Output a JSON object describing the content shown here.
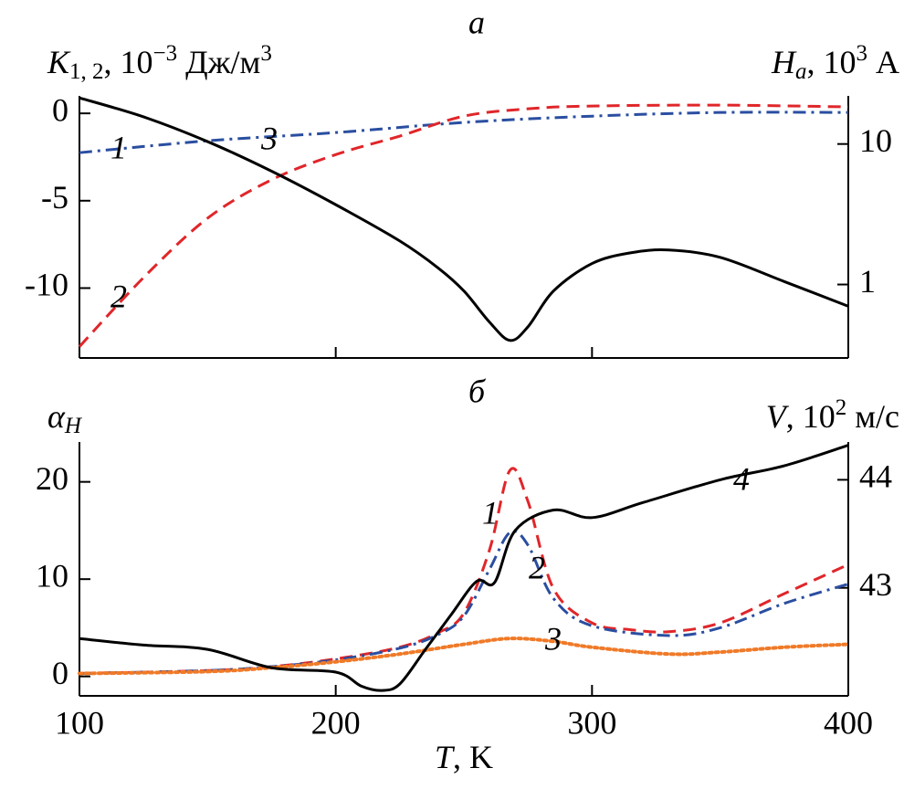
{
  "chart_data": [
    {
      "type": "line",
      "title": "а",
      "y_label": {
        "main": "K",
        "sub": "1, 2",
        "mid": ", 10",
        "sup": "−3",
        "unit": " Дж/м",
        "sup2": "3"
      },
      "y2_label": {
        "main": "H",
        "sub": "a",
        "mid": ", 10",
        "sup": "3",
        "unit": " А"
      },
      "xlim": [
        100,
        400
      ],
      "xticks": [
        200,
        300
      ],
      "ylim": [
        -14,
        1
      ],
      "yticks": [
        0,
        -5,
        -10
      ],
      "y2lim": [
        0.3,
        22
      ],
      "y2ticks": [
        1,
        10
      ],
      "y2log": true,
      "series": [
        {
          "name": "1",
          "color": "#2a4ea0",
          "dash": "dashdot",
          "x": [
            100,
            150,
            200,
            250,
            300,
            350,
            400
          ],
          "values": [
            -2.25,
            -1.57,
            -1.1,
            -0.52,
            -0.16,
            0.05,
            0.05
          ]
        },
        {
          "name": "2",
          "color": "#e0262a",
          "dash": "dashed",
          "x": [
            100,
            125,
            150,
            175,
            200,
            225,
            250,
            275,
            300,
            350,
            400
          ],
          "values": [
            -13.35,
            -9.4,
            -6.0,
            -3.8,
            -2.36,
            -1.3,
            -0.16,
            0.26,
            0.42,
            0.47,
            0.37
          ]
        },
        {
          "name": "3",
          "color": "#000000",
          "dash": "solid",
          "axis": "y2",
          "x": [
            100,
            125,
            150,
            175,
            200,
            225,
            240,
            250,
            260,
            268,
            275,
            285,
            300,
            315,
            330,
            350,
            375,
            400
          ],
          "values": [
            21.3,
            15.6,
            10.4,
            6.4,
            3.7,
            2.04,
            1.31,
            0.9,
            0.54,
            0.4,
            0.5,
            0.9,
            1.41,
            1.68,
            1.76,
            1.56,
            1.05,
            0.7
          ]
        }
      ]
    },
    {
      "type": "line",
      "title": "б",
      "y_label": {
        "main": "α",
        "sub": "H"
      },
      "y2_label": {
        "main": "V",
        "mid": ", 10",
        "sup": "2",
        "unit": " м/с"
      },
      "x_label": {
        "main": "T",
        "unit": ", K"
      },
      "xlim": [
        100,
        400
      ],
      "xticks": [
        100,
        200,
        300,
        400
      ],
      "ylim": [
        -2,
        24.1
      ],
      "yticks": [
        0,
        10,
        20
      ],
      "y2lim": [
        42,
        44.35
      ],
      "y2ticks": [
        43,
        44
      ],
      "series": [
        {
          "name": "1",
          "color": "#e0262a",
          "dash": "dashed",
          "x": [
            100,
            150,
            175,
            200,
            225,
            240,
            250,
            260,
            268,
            275,
            285,
            300,
            315,
            330,
            350,
            375,
            400
          ],
          "values": [
            0.3,
            0.6,
            1.0,
            1.8,
            3.0,
            4.5,
            6.5,
            13,
            21.2,
            18,
            9,
            5.5,
            4.8,
            4.6,
            5.5,
            8.5,
            11.5
          ]
        },
        {
          "name": "2",
          "color": "#2a4ea0",
          "dash": "dashdot",
          "x": [
            100,
            150,
            175,
            200,
            225,
            240,
            250,
            260,
            268,
            275,
            285,
            300,
            330,
            350,
            375,
            400
          ],
          "values": [
            0.3,
            0.6,
            1.0,
            1.7,
            2.9,
            4.3,
            6.2,
            11,
            14.8,
            13.5,
            8,
            5.2,
            4.2,
            5,
            7.5,
            9.5
          ]
        },
        {
          "name": "3",
          "color": "#f07a28",
          "dash": "dotted",
          "x": [
            100,
            150,
            175,
            200,
            225,
            250,
            268,
            285,
            300,
            330,
            350,
            375,
            400
          ],
          "values": [
            0.3,
            0.5,
            0.9,
            1.5,
            2.3,
            3.3,
            3.9,
            3.6,
            3.0,
            2.3,
            2.5,
            3.0,
            3.3
          ]
        },
        {
          "name": "4",
          "color": "#000000",
          "dash": "solid",
          "axis": "y2",
          "x": [
            100,
            125,
            150,
            175,
            200,
            210,
            218,
            225,
            235,
            245,
            255,
            262,
            270,
            285,
            300,
            320,
            350,
            375,
            400
          ],
          "values": [
            42.53,
            42.47,
            42.43,
            42.26,
            42.22,
            42.09,
            42.05,
            42.11,
            42.43,
            42.75,
            43.06,
            43.05,
            43.53,
            43.72,
            43.65,
            43.79,
            44.0,
            44.13,
            44.32
          ]
        }
      ]
    }
  ]
}
